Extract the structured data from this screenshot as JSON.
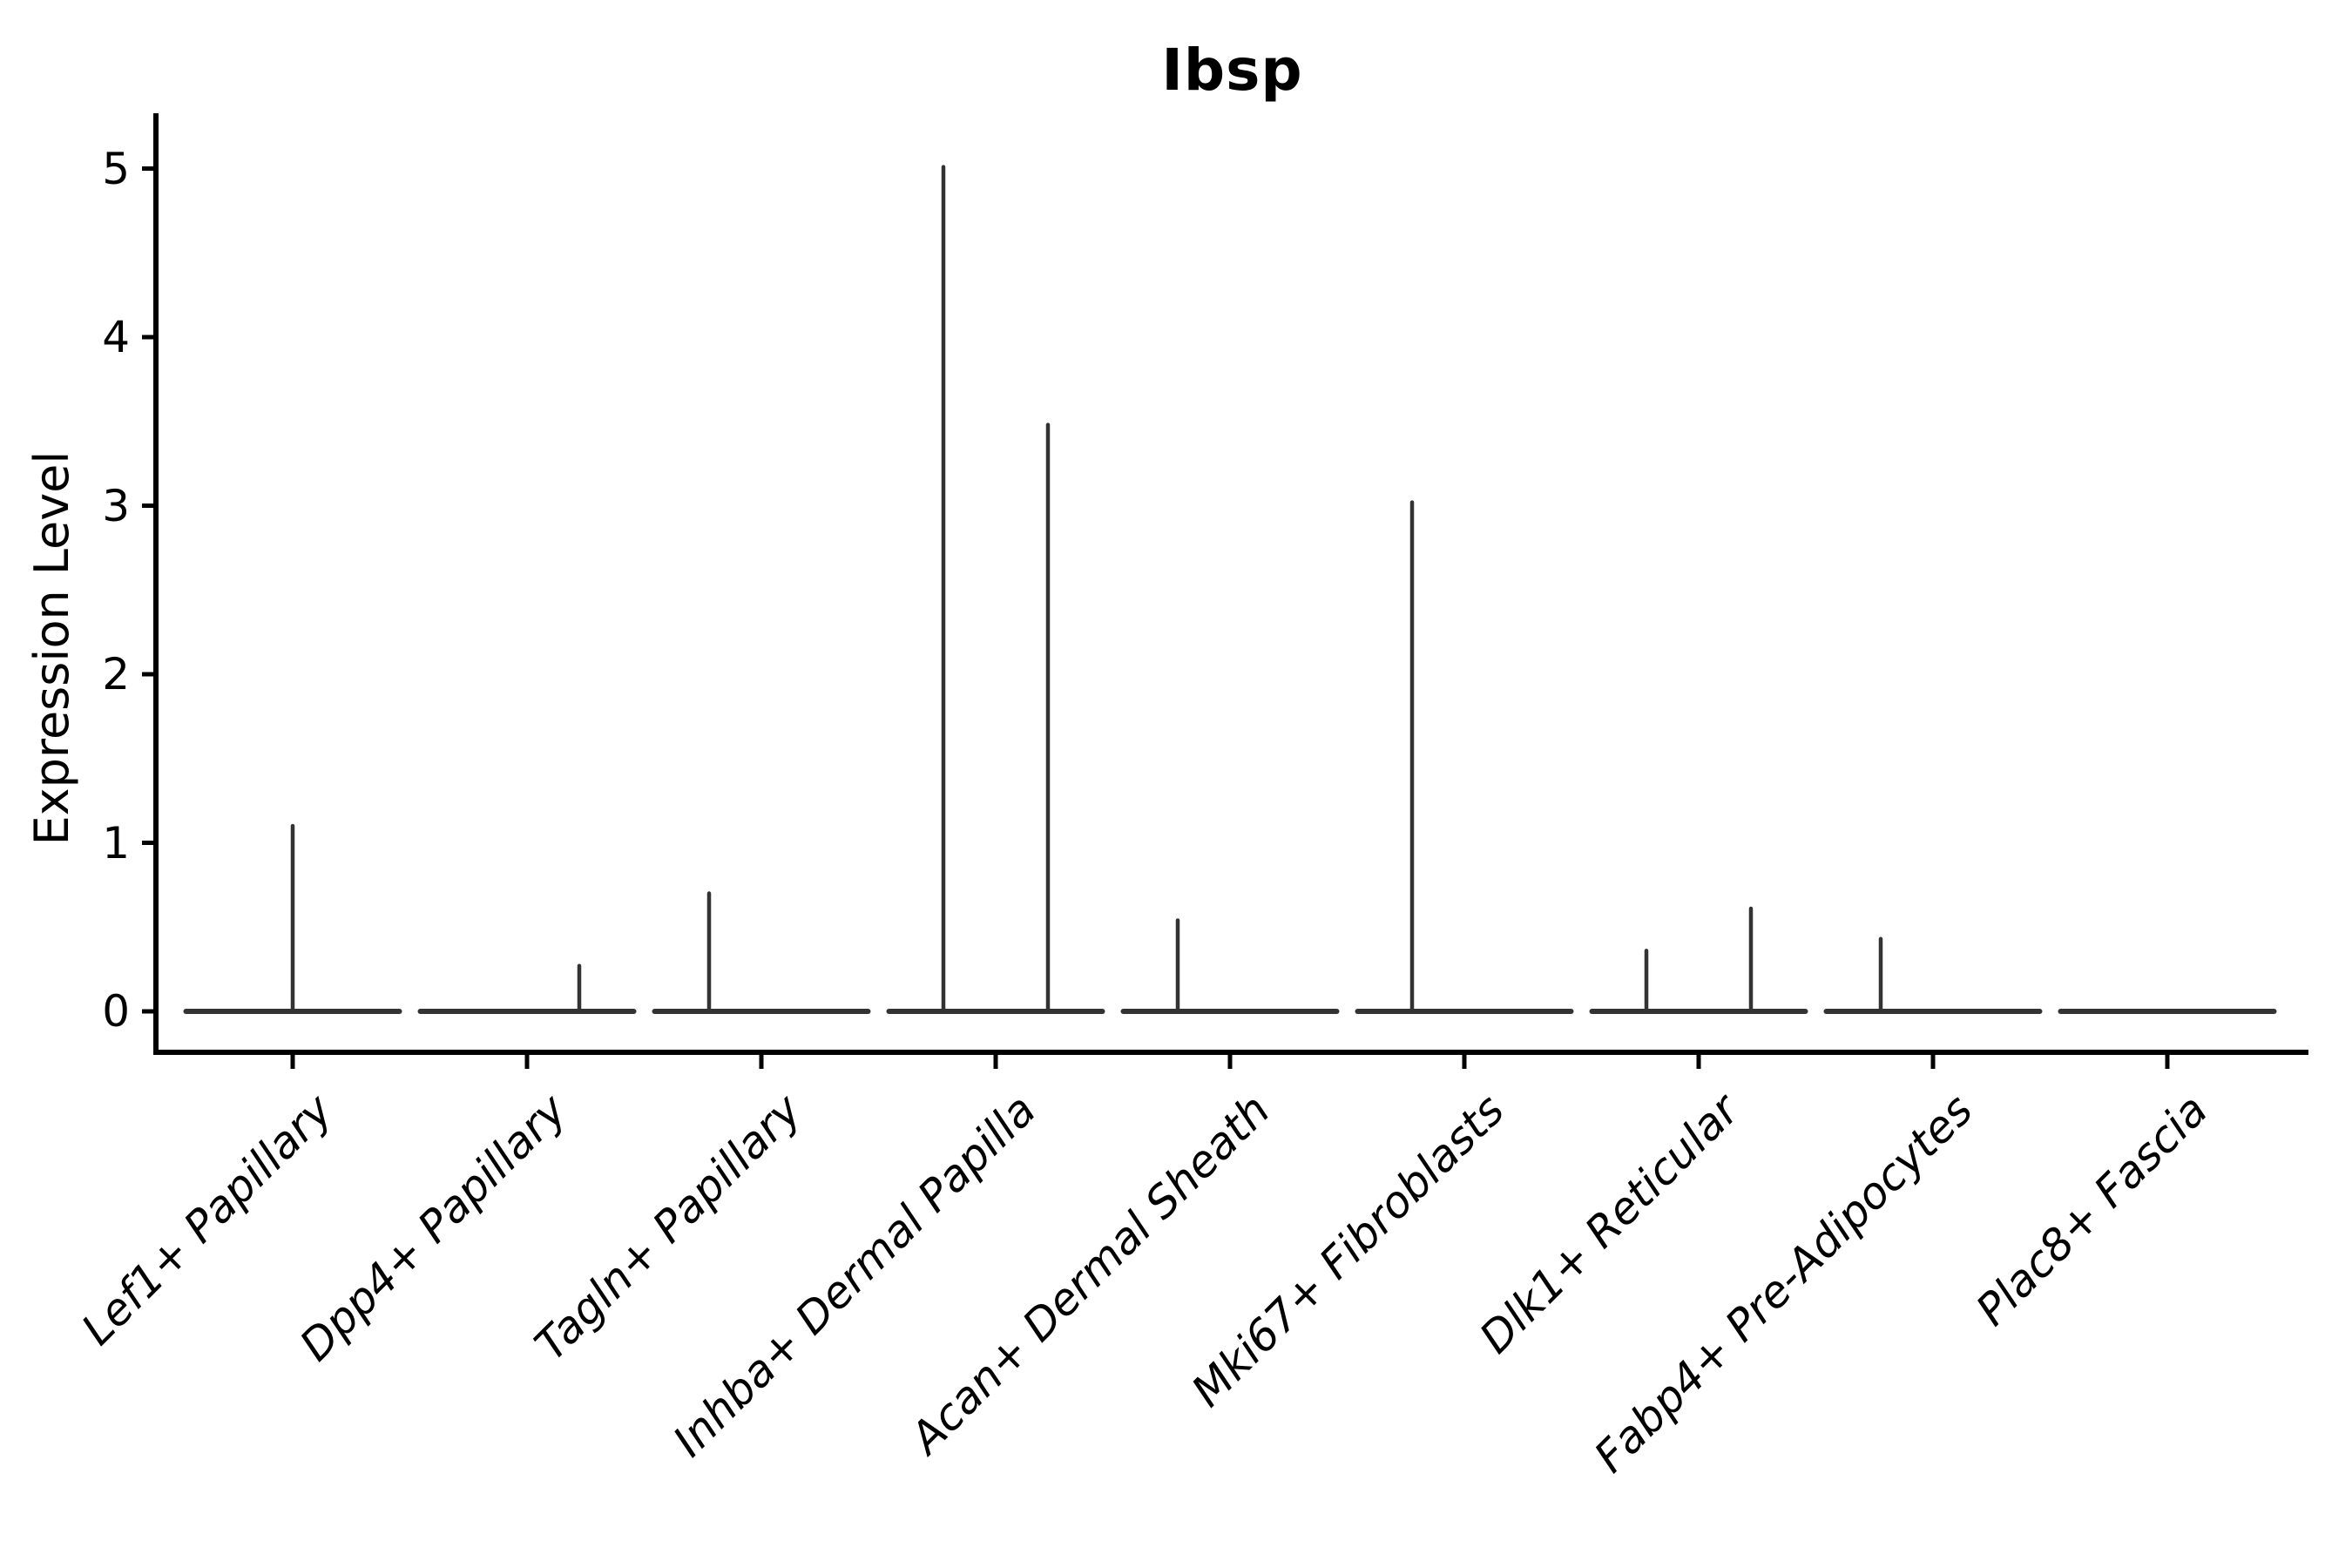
{
  "figure": {
    "title": "Ibsp",
    "ylabel": "Expression Level"
  },
  "chart_data": {
    "type": "violin",
    "title": "Ibsp",
    "xlabel": "",
    "ylabel": "Expression Level",
    "yticks": [
      0,
      1,
      2,
      3,
      4,
      5
    ],
    "ylim": [
      -0.24,
      5.33
    ],
    "grid": false,
    "legend": "none",
    "line_color": "#333333",
    "axis_color": "#000000",
    "background_color": "#ffffff",
    "baseline_value": 0,
    "categories": [
      "Lef1+ Papillary",
      "Dpp4+ Papillary",
      "Tagln+ Papillary",
      "Inhba+ Dermal Papilla",
      "Acan+ Dermal Sheath",
      "Mki67+ Fibroblasts",
      "Dlk1+ Reticular",
      "Fabp4+ Pre-Adipocytes",
      "Plac8+ Fascia"
    ],
    "violins": [
      {
        "category": "Lef1+ Papillary",
        "spikes": [
          {
            "side": "center",
            "max": 1.1
          }
        ]
      },
      {
        "category": "Dpp4+ Papillary",
        "spikes": [
          {
            "side": "right",
            "max": 0.27
          }
        ]
      },
      {
        "category": "Tagln+ Papillary",
        "spikes": [
          {
            "side": "left",
            "max": 0.7
          }
        ]
      },
      {
        "category": "Inhba+ Dermal Papilla",
        "spikes": [
          {
            "side": "left",
            "max": 5.01
          },
          {
            "side": "right",
            "max": 3.48
          }
        ]
      },
      {
        "category": "Acan+ Dermal Sheath",
        "spikes": [
          {
            "side": "left",
            "max": 0.54
          }
        ]
      },
      {
        "category": "Mki67+ Fibroblasts",
        "spikes": [
          {
            "side": "left",
            "max": 3.02
          }
        ]
      },
      {
        "category": "Dlk1+ Reticular",
        "spikes": [
          {
            "side": "left",
            "max": 0.36
          },
          {
            "side": "right",
            "max": 0.61
          }
        ]
      },
      {
        "category": "Fabp4+ Pre-Adipocytes",
        "spikes": [
          {
            "side": "left",
            "max": 0.43
          }
        ]
      },
      {
        "category": "Plac8+ Fascia",
        "spikes": []
      }
    ]
  }
}
